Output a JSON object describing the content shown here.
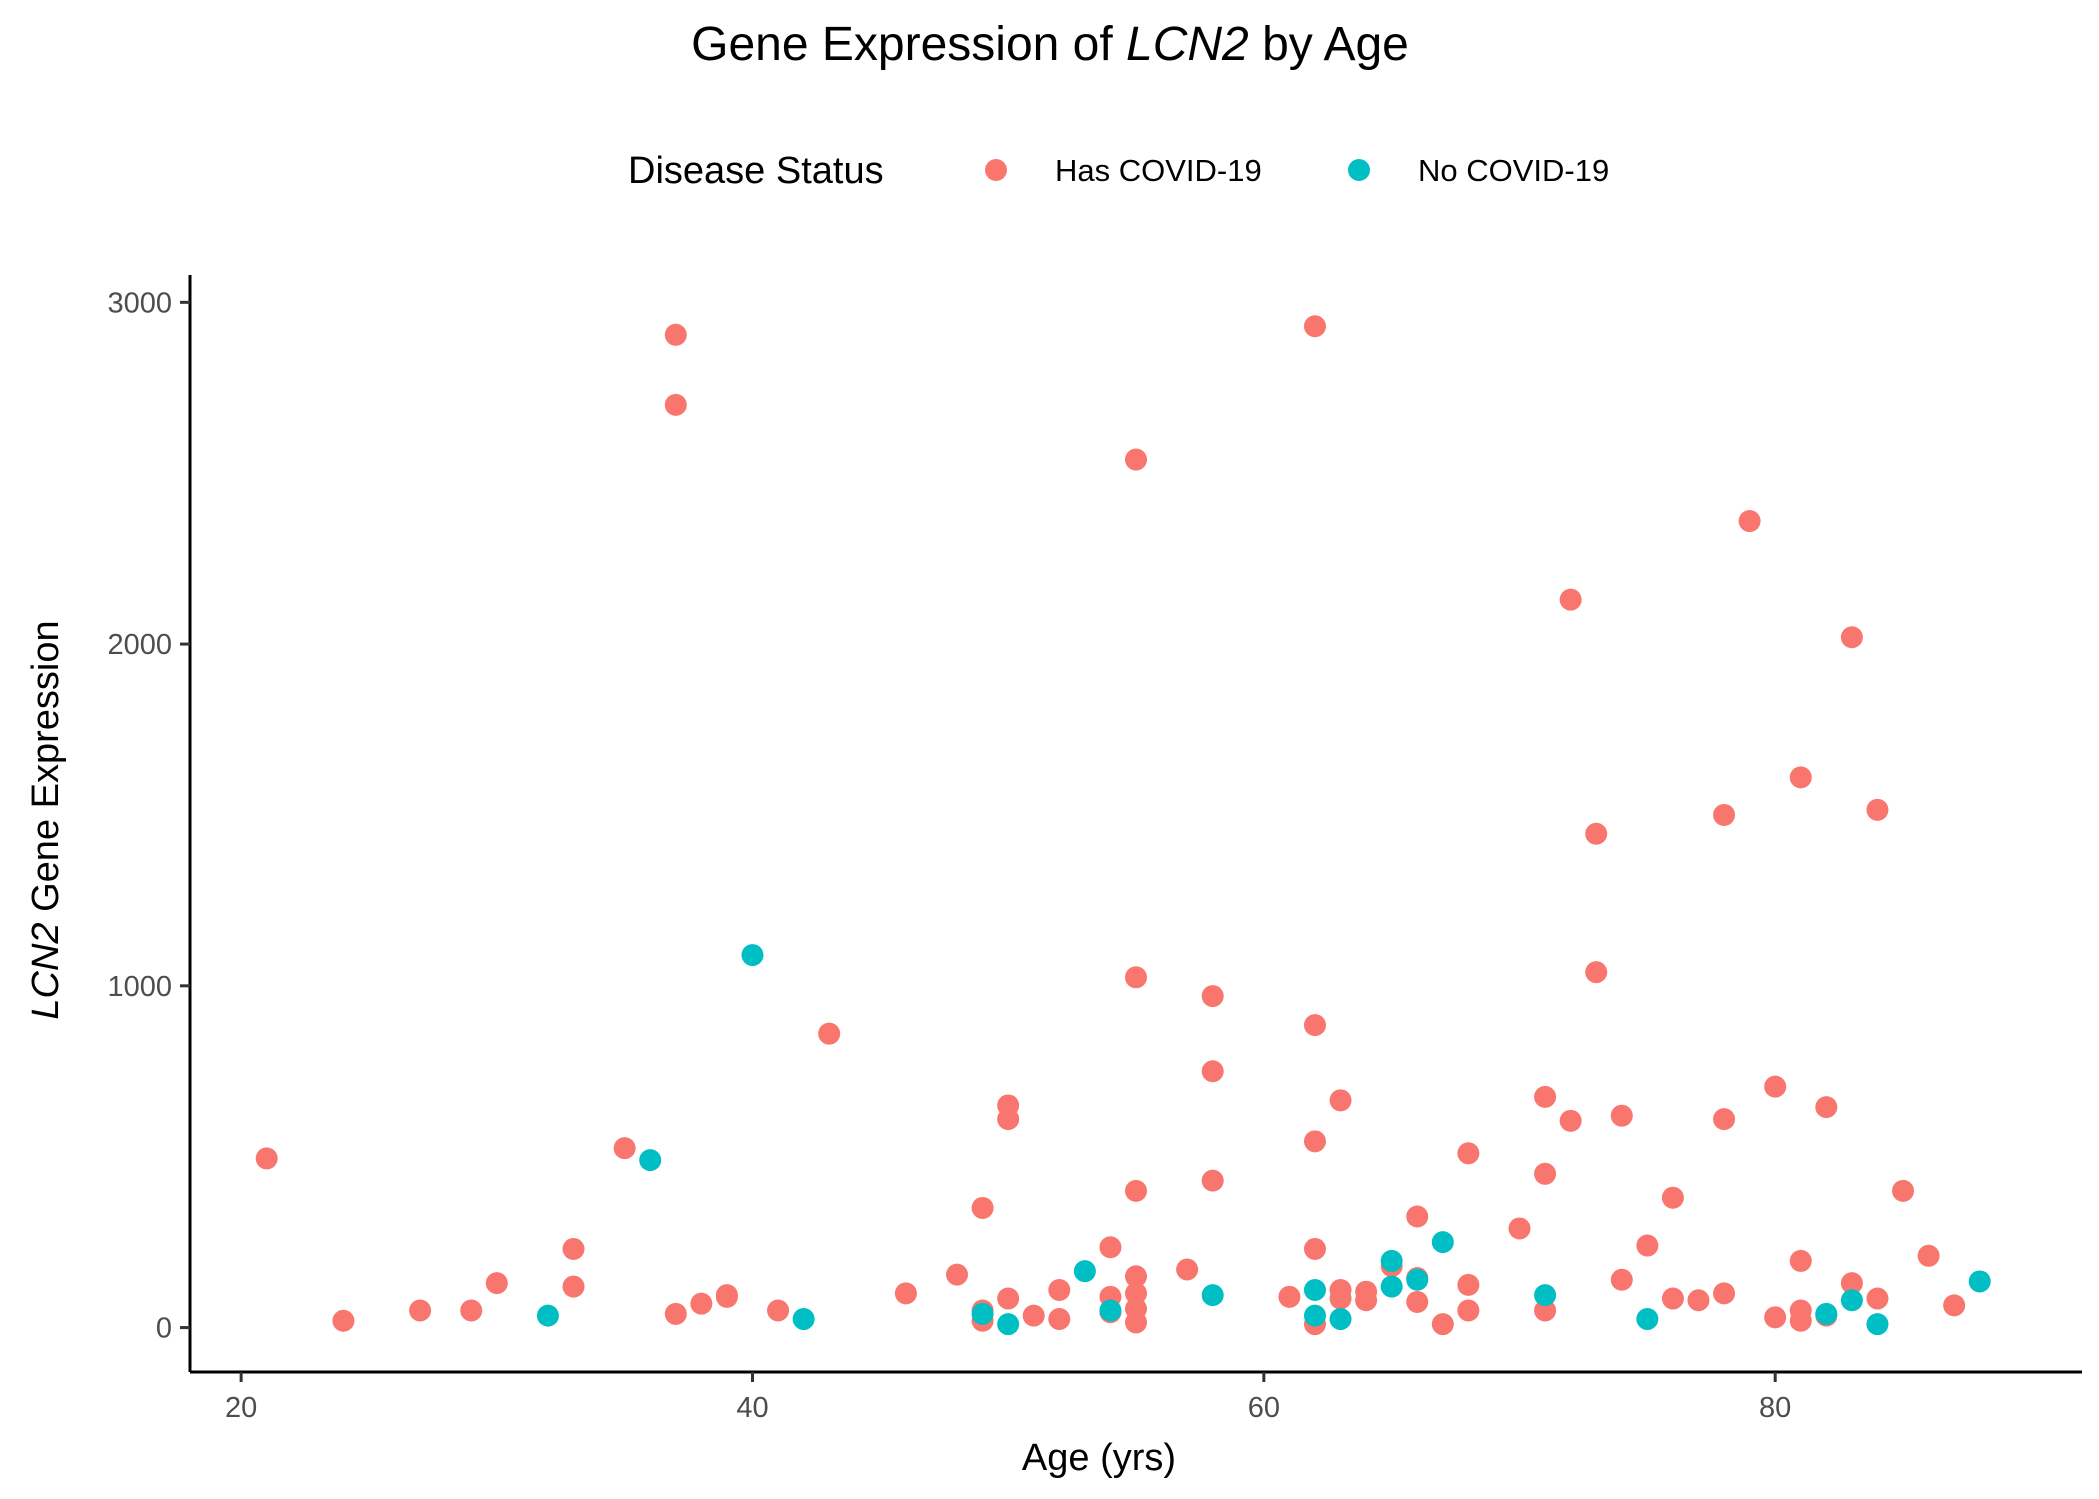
{
  "chart_data": {
    "type": "scatter",
    "title": {
      "prefix": "Gene Expression of ",
      "gene": "LCN2",
      "suffix": " by Age"
    },
    "xlabel": "Age (yrs)",
    "ylabel": {
      "gene": "LCN2",
      "suffix": " Gene Expression"
    },
    "xlim": [
      18,
      92
    ],
    "ylim": [
      -130,
      3080
    ],
    "x_ticks": [
      20,
      40,
      60,
      80
    ],
    "y_ticks": [
      0,
      1000,
      2000,
      3000
    ],
    "grid": false,
    "legend": {
      "title": "Disease Status",
      "position": "top"
    },
    "series": [
      {
        "name": "Has COVID-19",
        "color": "#F8766D",
        "points": [
          [
            21,
            495
          ],
          [
            24,
            20
          ],
          [
            27,
            50
          ],
          [
            29,
            50
          ],
          [
            30,
            130
          ],
          [
            33,
            230
          ],
          [
            33,
            120
          ],
          [
            35,
            525
          ],
          [
            37,
            2905
          ],
          [
            37,
            2700
          ],
          [
            37,
            40
          ],
          [
            38,
            70
          ],
          [
            39,
            90
          ],
          [
            39,
            95
          ],
          [
            41,
            50
          ],
          [
            43,
            860
          ],
          [
            46,
            100
          ],
          [
            48,
            155
          ],
          [
            49,
            350
          ],
          [
            49,
            50
          ],
          [
            49,
            20
          ],
          [
            50,
            650
          ],
          [
            50,
            610
          ],
          [
            50,
            85
          ],
          [
            51,
            35
          ],
          [
            52,
            110
          ],
          [
            52,
            25
          ],
          [
            54,
            235
          ],
          [
            54,
            90
          ],
          [
            54,
            45
          ],
          [
            55,
            2540
          ],
          [
            55,
            1025
          ],
          [
            55,
            400
          ],
          [
            55,
            150
          ],
          [
            55,
            100
          ],
          [
            55,
            55
          ],
          [
            55,
            15
          ],
          [
            57,
            170
          ],
          [
            58,
            970
          ],
          [
            58,
            750
          ],
          [
            58,
            430
          ],
          [
            61,
            90
          ],
          [
            62,
            2930
          ],
          [
            62,
            885
          ],
          [
            62,
            545
          ],
          [
            62,
            230
          ],
          [
            62,
            10
          ],
          [
            63,
            665
          ],
          [
            63,
            110
          ],
          [
            63,
            85
          ],
          [
            64,
            105
          ],
          [
            64,
            80
          ],
          [
            65,
            180
          ],
          [
            66,
            325
          ],
          [
            66,
            145
          ],
          [
            66,
            75
          ],
          [
            67,
            10
          ],
          [
            68,
            510
          ],
          [
            68,
            125
          ],
          [
            68,
            50
          ],
          [
            70,
            290
          ],
          [
            71,
            675
          ],
          [
            71,
            450
          ],
          [
            71,
            50
          ],
          [
            72,
            2130
          ],
          [
            72,
            605
          ],
          [
            73,
            1445
          ],
          [
            73,
            1040
          ],
          [
            74,
            620
          ],
          [
            74,
            140
          ],
          [
            75,
            240
          ],
          [
            76,
            380
          ],
          [
            76,
            85
          ],
          [
            77,
            80
          ],
          [
            78,
            1500
          ],
          [
            78,
            610
          ],
          [
            78,
            100
          ],
          [
            79,
            2360
          ],
          [
            80,
            705
          ],
          [
            80,
            30
          ],
          [
            81,
            1610
          ],
          [
            81,
            195
          ],
          [
            81,
            50
          ],
          [
            81,
            20
          ],
          [
            82,
            645
          ],
          [
            82,
            35
          ],
          [
            83,
            2020
          ],
          [
            83,
            130
          ],
          [
            84,
            1515
          ],
          [
            84,
            85
          ],
          [
            85,
            400
          ],
          [
            86,
            210
          ],
          [
            87,
            65
          ]
        ]
      },
      {
        "name": "No COVID-19",
        "color": "#00BFC4",
        "points": [
          [
            32,
            35
          ],
          [
            36,
            490
          ],
          [
            40,
            1090
          ],
          [
            42,
            25
          ],
          [
            49,
            40
          ],
          [
            50,
            10
          ],
          [
            53,
            165
          ],
          [
            54,
            50
          ],
          [
            58,
            95
          ],
          [
            62,
            110
          ],
          [
            62,
            35
          ],
          [
            63,
            25
          ],
          [
            65,
            195
          ],
          [
            65,
            120
          ],
          [
            66,
            140
          ],
          [
            67,
            250
          ],
          [
            71,
            95
          ],
          [
            75,
            25
          ],
          [
            82,
            40
          ],
          [
            83,
            80
          ],
          [
            84,
            10
          ],
          [
            88,
            135
          ]
        ]
      }
    ]
  }
}
